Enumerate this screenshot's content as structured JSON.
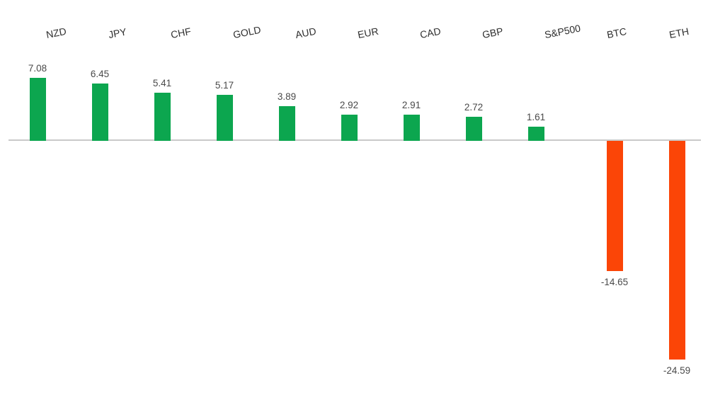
{
  "chart_data": {
    "type": "bar",
    "title": "",
    "xlabel": "",
    "ylabel": "",
    "categories": [
      "NZD",
      "JPY",
      "CHF",
      "GOLD",
      "AUD",
      "EUR",
      "CAD",
      "GBP",
      "S&P500",
      "BTC",
      "ETH"
    ],
    "values": [
      7.08,
      6.45,
      5.41,
      5.17,
      3.89,
      2.92,
      2.91,
      2.72,
      1.61,
      -14.65,
      -24.59
    ],
    "value_labels": [
      "7.08",
      "6.45",
      "5.41",
      "5.17",
      "3.89",
      "2.92",
      "2.91",
      "2.72",
      "1.61",
      "-14.65",
      "-24.59"
    ],
    "series": [
      {
        "name": "positive",
        "color": "#0CA64F",
        "indices": [
          0,
          1,
          2,
          3,
          4,
          5,
          6,
          7,
          8
        ]
      },
      {
        "name": "negative",
        "color": "#FB4507",
        "indices": [
          9,
          10
        ]
      }
    ],
    "ylim": [
      -26,
      9
    ],
    "baseline": 0,
    "grid": false,
    "legend": false,
    "category_label_position": "high",
    "category_label_rotation_deg": -11,
    "colors": {
      "positive": "#0CA64F",
      "negative": "#FB4507",
      "axis_line": "#C9C9C9",
      "category_text": "#2E2E2E",
      "value_text": "#4A4A4A",
      "background": "#FFFFFF"
    }
  }
}
